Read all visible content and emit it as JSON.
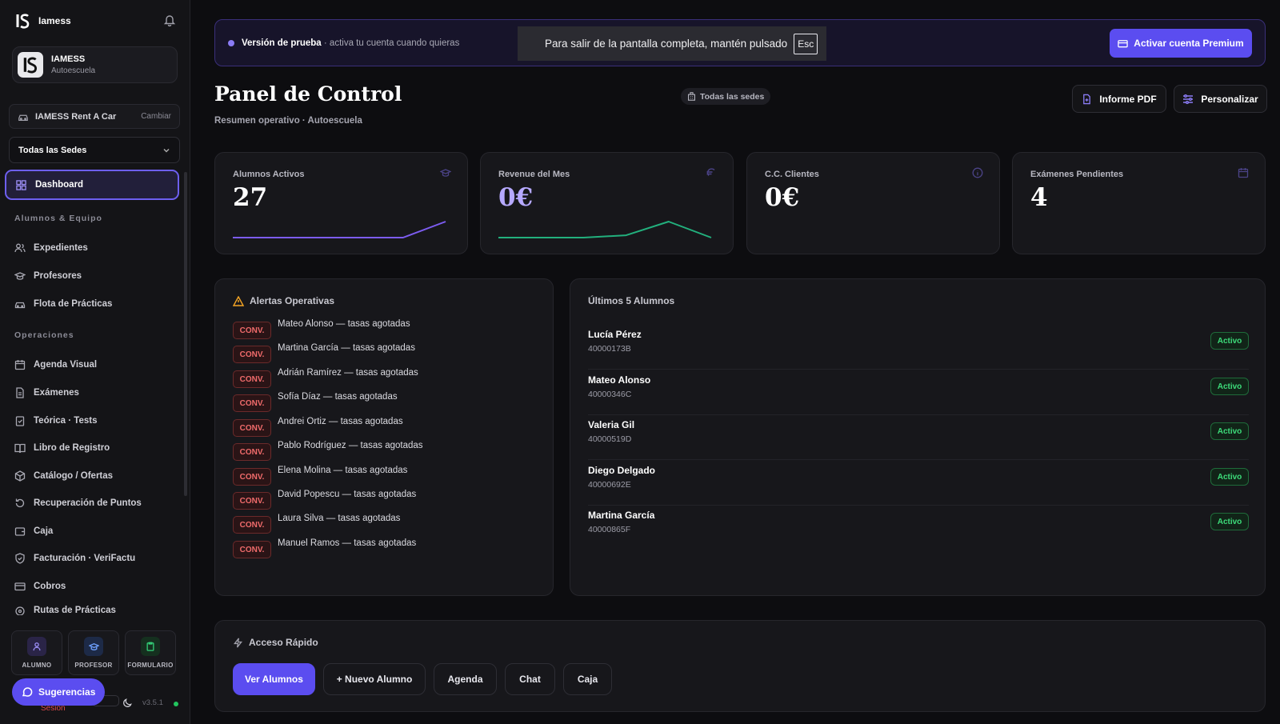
{
  "sidebar": {
    "brand": "Iamess",
    "profile": {
      "name": "IAMESS",
      "role": "Autoescuela"
    },
    "company": {
      "name": "IAMESS Rent A Car",
      "change_label": "Cambiar"
    },
    "sede_select": {
      "value": "Todas las Sedes"
    },
    "active_item": {
      "label": "Dashboard",
      "icon": "grid-icon"
    },
    "sections": [
      {
        "title": "Alumnos & Equipo",
        "items": [
          {
            "label": "Expedientes",
            "icon": "users-icon"
          },
          {
            "label": "Profesores",
            "icon": "graduation-cap-icon"
          },
          {
            "label": "Flota de Prácticas",
            "icon": "car-icon"
          }
        ]
      },
      {
        "title": "Operaciones",
        "items": [
          {
            "label": "Agenda Visual",
            "icon": "calendar-icon"
          },
          {
            "label": "Exámenes",
            "icon": "file-icon"
          },
          {
            "label": "Teórica · Tests",
            "icon": "clipboard-check-icon"
          },
          {
            "label": "Libro de Registro",
            "icon": "book-icon"
          },
          {
            "label": "Catálogo / Ofertas",
            "icon": "package-icon"
          },
          {
            "label": "Recuperación de Puntos",
            "icon": "rotate-icon"
          },
          {
            "label": "Caja",
            "icon": "wallet-icon"
          },
          {
            "label": "Facturación · VeriFactu",
            "icon": "shield-check-icon"
          },
          {
            "label": "Cobros",
            "icon": "credit-card-icon"
          },
          {
            "label": "Rutas de Prácticas",
            "icon": "route-icon"
          }
        ]
      }
    ],
    "quick_tiles": [
      {
        "label": "ALUMNO",
        "icon": "user-icon",
        "color": "#7c6cf2"
      },
      {
        "label": "PROFESOR",
        "icon": "graduation-cap-icon",
        "color": "#5b8cf5"
      },
      {
        "label": "FORMULARIO",
        "icon": "clipboard-icon",
        "color": "#22c55e"
      }
    ],
    "suggestions_label": "Sugerencias",
    "logout_label": "Sesión",
    "version": "v3.5.1"
  },
  "banner": {
    "title": "Versión de prueba",
    "text": "· activa tu cuenta cuando quieras",
    "fullscreen_notice": "Para salir de la pantalla completa, mantén pulsado",
    "fullscreen_key": "Esc",
    "premium_button": "Activar cuenta Premium"
  },
  "header": {
    "title": "Panel de Control",
    "subtitle": "Resumen operativo · Autoescuela",
    "sedes_chip": "Todas las sedes",
    "pdf_button": "Informe PDF",
    "customize_button": "Personalizar"
  },
  "kpis": [
    {
      "label": "Alumnos Activos",
      "value": "27",
      "icon": "graduation-cap-icon",
      "trend": [
        0,
        0,
        0,
        0,
        0,
        27
      ],
      "color": "#7c5cf0"
    },
    {
      "label": "Revenue del Mes",
      "value": "0€",
      "icon": "euro-icon",
      "trend": [
        0,
        0,
        0,
        1,
        7,
        0
      ],
      "color": "#22b07d"
    },
    {
      "label": "C.C. Clientes",
      "value": "0€",
      "icon": "info-icon"
    },
    {
      "label": "Exámenes Pendientes",
      "value": "4",
      "icon": "calendar-icon"
    }
  ],
  "alerts": {
    "title": "Alertas Operativas",
    "tag": "CONV.",
    "items": [
      "Mateo Alonso — tasas agotadas",
      "Martina García — tasas agotadas",
      "Adrián Ramírez — tasas agotadas",
      "Sofía Díaz — tasas agotadas",
      "Andrei Ortiz — tasas agotadas",
      "Pablo Rodríguez — tasas agotadas",
      "Elena Molina — tasas agotadas",
      "David Popescu — tasas agotadas",
      "Laura Silva — tasas agotadas",
      "Manuel Ramos — tasas agotadas"
    ]
  },
  "students": {
    "title": "Últimos 5 Alumnos",
    "items": [
      {
        "name": "Lucía Pérez",
        "id": "40000173B",
        "status": "Activo"
      },
      {
        "name": "Mateo Alonso",
        "id": "40000346C",
        "status": "Activo"
      },
      {
        "name": "Valeria Gil",
        "id": "40000519D",
        "status": "Activo"
      },
      {
        "name": "Diego Delgado",
        "id": "40000692E",
        "status": "Activo"
      },
      {
        "name": "Martina García",
        "id": "40000865F",
        "status": "Activo"
      }
    ]
  },
  "quick_access": {
    "title": "Acceso Rápido",
    "buttons": [
      "Ver Alumnos",
      "+ Nuevo Alumno",
      "Agenda",
      "Chat",
      "Caja"
    ]
  }
}
